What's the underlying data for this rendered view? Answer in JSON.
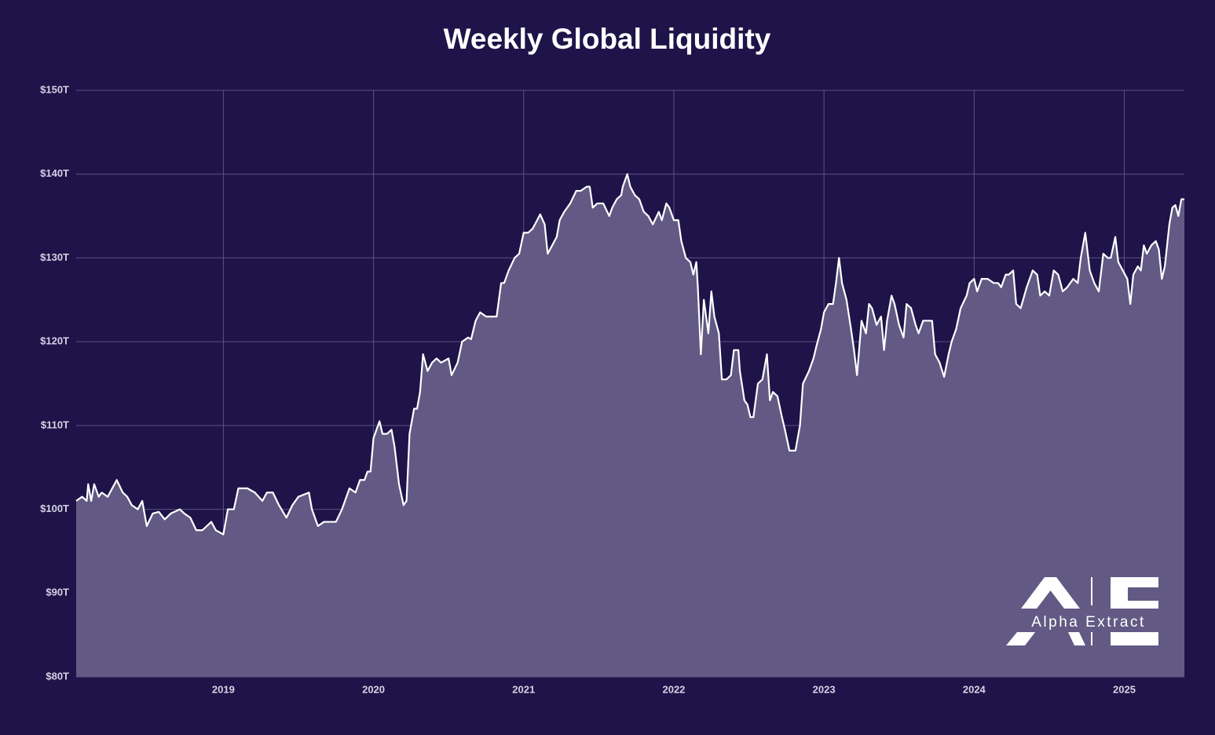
{
  "chart_data": {
    "type": "area",
    "title": "Weekly Global Liquidity",
    "watermark": "Alpha Extract",
    "color": "#ffffff",
    "fill": "#625a84",
    "grid": true,
    "xlim": [
      2018.02,
      2025.4
    ],
    "xticks": [
      2019,
      2020,
      2021,
      2022,
      2023,
      2024,
      2025
    ],
    "ylim": [
      80,
      150
    ],
    "yticks": [
      {
        "value": 80,
        "label": "$80T"
      },
      {
        "value": 90,
        "label": "$90T"
      },
      {
        "value": 100,
        "label": "$100T"
      },
      {
        "value": 110,
        "label": "$110T"
      },
      {
        "value": 120,
        "label": "$120T"
      },
      {
        "value": 130,
        "label": "$130T"
      },
      {
        "value": 140,
        "label": "$140T"
      },
      {
        "value": 150,
        "label": "$150T"
      }
    ],
    "x": [
      2018.02,
      2018.06,
      2018.09,
      2018.1,
      2018.12,
      2018.14,
      2018.17,
      2018.19,
      2018.23,
      2018.29,
      2018.33,
      2018.36,
      2018.39,
      2018.43,
      2018.46,
      2018.49,
      2018.53,
      2018.57,
      2018.61,
      2018.65,
      2018.71,
      2018.74,
      2018.78,
      2018.82,
      2018.86,
      2018.92,
      2018.95,
      2019.0,
      2019.03,
      2019.07,
      2019.1,
      2019.16,
      2019.21,
      2019.26,
      2019.29,
      2019.33,
      2019.37,
      2019.42,
      2019.46,
      2019.5,
      2019.57,
      2019.59,
      2019.63,
      2019.67,
      2019.7,
      2019.75,
      2019.79,
      2019.84,
      2019.88,
      2019.91,
      2019.94,
      2019.96,
      2019.98,
      2020.0,
      2020.04,
      2020.06,
      2020.09,
      2020.12,
      2020.14,
      2020.17,
      2020.2,
      2020.22,
      2020.24,
      2020.27,
      2020.29,
      2020.31,
      2020.33,
      2020.36,
      2020.39,
      2020.42,
      2020.45,
      2020.5,
      2020.52,
      2020.56,
      2020.59,
      2020.63,
      2020.65,
      2020.68,
      2020.71,
      2020.75,
      2020.78,
      2020.82,
      2020.85,
      2020.87,
      2020.9,
      2020.94,
      2020.97,
      2021.0,
      2021.03,
      2021.06,
      2021.09,
      2021.11,
      2021.14,
      2021.16,
      2021.19,
      2021.22,
      2021.24,
      2021.27,
      2021.31,
      2021.35,
      2021.38,
      2021.42,
      2021.44,
      2021.46,
      2021.49,
      2021.53,
      2021.57,
      2021.59,
      2021.62,
      2021.65,
      2021.66,
      2021.69,
      2021.71,
      2021.74,
      2021.77,
      2021.8,
      2021.83,
      2021.86,
      2021.9,
      2021.92,
      2021.95,
      2021.97,
      2022.0,
      2022.03,
      2022.05,
      2022.08,
      2022.11,
      2022.13,
      2022.15,
      2022.16,
      2022.18,
      2022.2,
      2022.23,
      2022.25,
      2022.27,
      2022.3,
      2022.32,
      2022.35,
      2022.38,
      2022.4,
      2022.43,
      2022.44,
      2022.47,
      2022.49,
      2022.51,
      2022.53,
      2022.56,
      2022.59,
      2022.62,
      2022.64,
      2022.66,
      2022.69,
      2022.72,
      2022.74,
      2022.77,
      2022.81,
      2022.84,
      2022.86,
      2022.9,
      2022.93,
      2022.95,
      2022.98,
      2023.0,
      2023.03,
      2023.06,
      2023.08,
      2023.1,
      2023.12,
      2023.15,
      2023.18,
      2023.2,
      2023.22,
      2023.25,
      2023.28,
      2023.3,
      2023.32,
      2023.35,
      2023.38,
      2023.4,
      2023.42,
      2023.45,
      2023.47,
      2023.5,
      2023.53,
      2023.55,
      2023.58,
      2023.61,
      2023.63,
      2023.66,
      2023.69,
      2023.72,
      2023.74,
      2023.77,
      2023.8,
      2023.83,
      2023.85,
      2023.88,
      2023.91,
      2023.95,
      2023.97,
      2024.0,
      2024.02,
      2024.05,
      2024.09,
      2024.13,
      2024.16,
      2024.18,
      2024.21,
      2024.23,
      2024.26,
      2024.28,
      2024.31,
      2024.35,
      2024.39,
      2024.42,
      2024.44,
      2024.47,
      2024.5,
      2024.53,
      2024.56,
      2024.59,
      2024.62,
      2024.66,
      2024.69,
      2024.71,
      2024.74,
      2024.77,
      2024.8,
      2024.83,
      2024.86,
      2024.89,
      2024.91,
      2024.94,
      2024.96,
      2024.99,
      2025.02,
      2025.04,
      2025.06,
      2025.09,
      2025.11,
      2025.13,
      2025.15,
      2025.18,
      2025.21,
      2025.23,
      2025.25,
      2025.27,
      2025.3,
      2025.32,
      2025.34,
      2025.36,
      2025.38,
      2025.4
    ],
    "values": [
      101,
      101.5,
      101,
      103,
      101,
      103,
      101.5,
      102,
      101.5,
      103.5,
      102,
      101.5,
      100.5,
      100,
      101,
      98,
      99.5,
      99.7,
      98.8,
      99.5,
      100,
      99.5,
      99,
      97.5,
      97.5,
      98.5,
      97.5,
      97,
      100,
      100,
      102.5,
      102.5,
      102,
      101,
      102,
      102,
      100.5,
      99,
      100.5,
      101.5,
      102,
      100,
      98,
      98.5,
      98.5,
      98.5,
      100,
      102.5,
      102,
      103.5,
      103.5,
      104.5,
      104.5,
      108.5,
      110.5,
      109,
      109,
      109.5,
      107.5,
      103,
      100.5,
      101,
      109,
      112,
      112,
      114,
      118.5,
      116.5,
      117.5,
      118,
      117.5,
      118,
      116,
      117.5,
      120,
      120.5,
      120.3,
      122.5,
      123.5,
      123,
      123,
      123,
      127,
      127,
      128.5,
      130,
      130.5,
      133,
      133,
      133.5,
      134.5,
      135.2,
      134,
      130.5,
      131.5,
      132.5,
      134.5,
      135.5,
      136.5,
      138,
      138,
      138.5,
      138.5,
      136,
      136.5,
      136.5,
      135,
      136,
      137,
      137.5,
      138.5,
      140,
      138.5,
      137.5,
      137,
      135.5,
      135,
      134,
      135.5,
      134.5,
      136.5,
      136,
      134.5,
      134.5,
      132,
      130,
      129.5,
      128,
      129.5,
      126.5,
      118.5,
      125,
      121,
      126,
      123,
      121,
      115.5,
      115.5,
      116,
      119,
      119,
      116.5,
      113,
      112.5,
      111,
      111,
      115,
      115.5,
      118.5,
      113,
      114,
      113.5,
      111,
      109.5,
      107,
      107,
      110,
      115,
      116.5,
      118,
      119.5,
      121.5,
      123.5,
      124.5,
      124.5,
      127,
      130,
      127,
      125,
      121.5,
      119,
      116,
      122.5,
      121,
      124.5,
      124,
      122,
      123,
      119,
      122.5,
      125.5,
      124.5,
      122,
      120.5,
      124.5,
      124,
      122,
      121,
      122.5,
      122.5,
      122.5,
      118.5,
      117.5,
      115.8,
      118.5,
      120,
      121.5,
      124,
      125.5,
      127,
      127.5,
      126,
      127.5,
      127.5,
      127,
      127,
      126.5,
      128,
      128,
      128.5,
      124.5,
      124,
      126.5,
      128.5,
      128,
      125.5,
      126,
      125.5,
      128.5,
      128,
      126,
      126.5,
      127.5,
      127,
      130,
      133,
      128.5,
      127,
      126,
      130.5,
      130,
      130,
      132.5,
      129.5,
      128.5,
      127.5,
      124.5,
      128,
      129,
      128.5,
      131.5,
      130.5,
      131.5,
      132,
      131,
      127.5,
      129,
      134,
      136,
      136.3,
      135,
      137,
      137
    ]
  }
}
